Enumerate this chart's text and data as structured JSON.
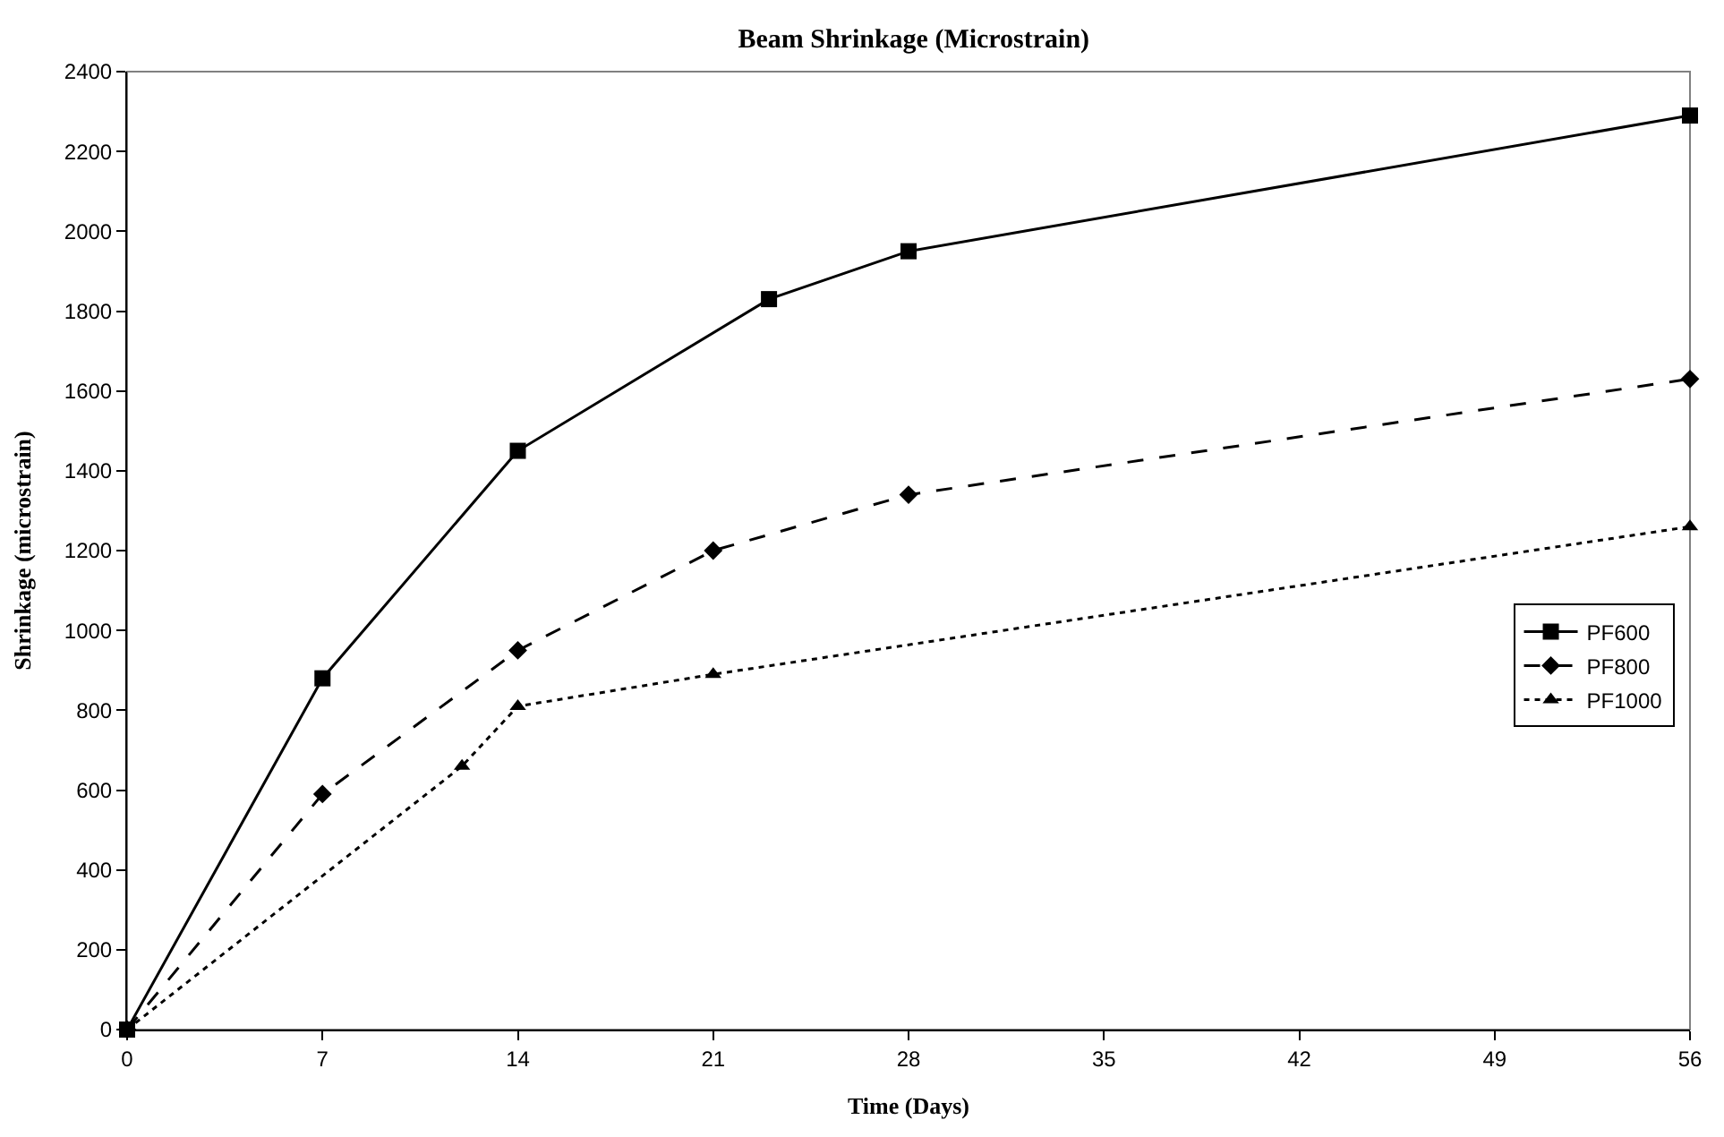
{
  "chart_data": {
    "type": "line",
    "title": "Beam Shrinkage (Microstrain)",
    "xlabel": "Time (Days)",
    "ylabel": "Shrinkage (microstrain)",
    "xlim": [
      0,
      56
    ],
    "xticks": [
      0,
      7,
      14,
      21,
      28,
      35,
      42,
      49,
      56
    ],
    "ylim": [
      0,
      2400
    ],
    "yticks": [
      0,
      200,
      400,
      600,
      800,
      1000,
      1200,
      1400,
      1600,
      1800,
      2000,
      2200,
      2400
    ],
    "grid": false,
    "legend": "right",
    "series": [
      {
        "name": "PF600",
        "color": "#000000",
        "marker": "square",
        "line_style": "solid",
        "x": [
          0,
          7,
          14,
          23,
          28,
          56
        ],
        "values": [
          0,
          880,
          1450,
          1830,
          1950,
          2290
        ]
      },
      {
        "name": "PF800",
        "color": "#000000",
        "marker": "diamond",
        "line_style": "dashed",
        "x": [
          0,
          7,
          14,
          21,
          28,
          56
        ],
        "values": [
          0,
          590,
          950,
          1200,
          1340,
          1630
        ]
      },
      {
        "name": "PF1000",
        "color": "#000000",
        "marker": "triangle",
        "line_style": "dotted",
        "x": [
          0,
          12,
          14,
          21,
          56
        ],
        "values": [
          0,
          660,
          810,
          890,
          1260
        ]
      }
    ]
  }
}
